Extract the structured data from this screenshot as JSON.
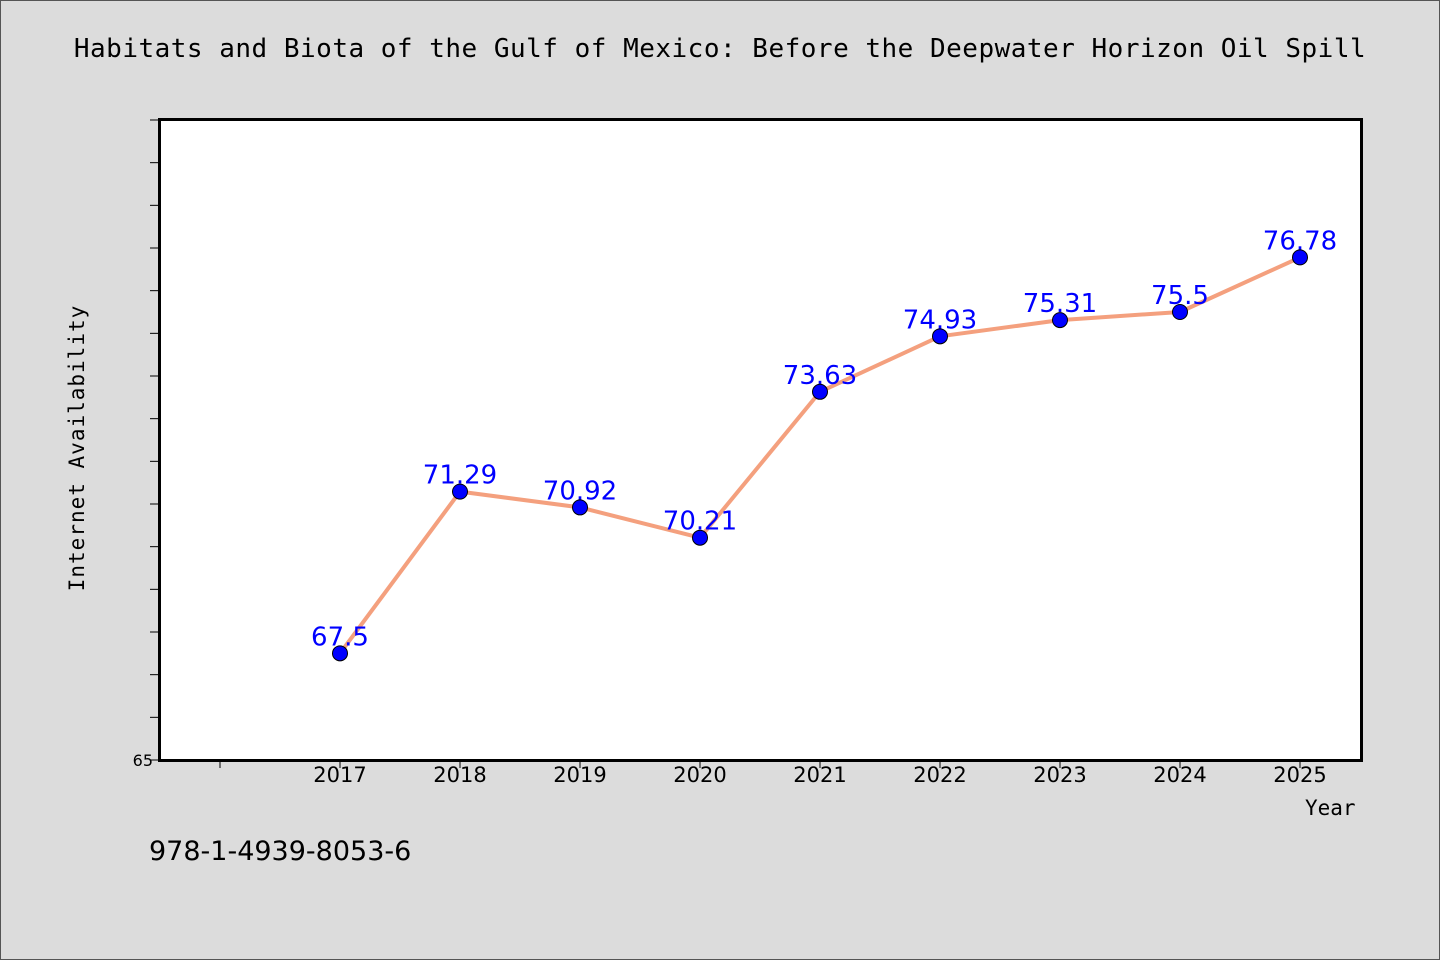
{
  "chart_data": {
    "type": "line",
    "title": "Habitats and Biota of the Gulf of Mexico: Before the Deepwater Horizon Oil Spill",
    "xlabel": "Year",
    "ylabel": "Internet Availability",
    "categories": [
      "2017",
      "2018",
      "2019",
      "2020",
      "2021",
      "2022",
      "2023",
      "2024",
      "2025"
    ],
    "series": [
      {
        "values": [
          67.5,
          71.29,
          70.92,
          70.21,
          73.63,
          74.93,
          75.31,
          75.5,
          76.78
        ],
        "labels": [
          "67.5",
          "71.29",
          "70.92",
          "70.21",
          "73.63",
          "74.93",
          "75.31",
          "75.5",
          "76.78"
        ]
      }
    ],
    "ylim": [
      65,
      80
    ],
    "ytick_labels": [
      "65"
    ],
    "grid": false,
    "legend": "none",
    "colors": {
      "line": "#f4a07e",
      "marker": "#0000ff",
      "data_label": "#0000ff"
    }
  },
  "footer": {
    "isbn": "978-1-4939-8053-6"
  }
}
